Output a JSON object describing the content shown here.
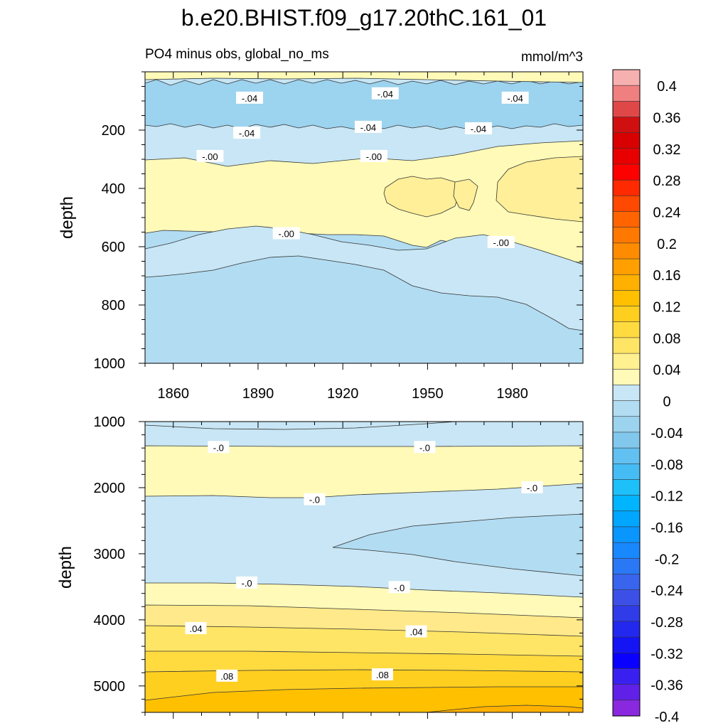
{
  "title": "b.e20.BHIST.f09_g17.20thC.161_01",
  "subtitle_left": "PO4 minus obs, global_no_ms",
  "subtitle_right": "mmol/m^3",
  "chart_data": [
    {
      "type": "contour",
      "panel": "upper",
      "ylabel": "depth",
      "x_range": [
        1850,
        2005
      ],
      "y_range": [
        0,
        1000
      ],
      "y_reversed": true,
      "xticks": [
        "1860",
        "1890",
        "1920",
        "1950",
        "1980"
      ],
      "yticks": [
        "200",
        "400",
        "600",
        "800",
        "1000"
      ],
      "regions": [
        {
          "range": "-0.04 to 0",
          "depth_top": 0,
          "depth_bottom": 20
        },
        {
          "range": "-0.08 to -0.04",
          "depth_top": 20,
          "depth_bottom": 200
        },
        {
          "range": "-0.04 to 0",
          "depth_top": 200,
          "depth_bottom": 300
        },
        {
          "range": "0 to 0.02",
          "depth_top": 300,
          "depth_bottom": 590
        },
        {
          "range": "0.02 to 0.04",
          "depth_top": 360,
          "depth_bottom": 500,
          "years": [
            1932,
            1972
          ]
        },
        {
          "range": "0.02 to 0.04",
          "depth_top": 330,
          "depth_bottom": 510,
          "years": [
            1976,
            2005
          ]
        },
        {
          "range": "-0.02 to 0",
          "depth_top": 590,
          "depth_bottom": 750
        },
        {
          "range": "-0.04 to -0.02",
          "depth_top": 700,
          "depth_bottom": 1000
        }
      ],
      "contour_labels": [
        {
          "text": "-.04",
          "year": 1887,
          "depth": 90
        },
        {
          "text": "-.04",
          "year": 1935,
          "depth": 75
        },
        {
          "text": "-.04",
          "year": 1981,
          "depth": 90
        },
        {
          "text": "-.04",
          "year": 1886,
          "depth": 210
        },
        {
          "text": "-.04",
          "year": 1929,
          "depth": 190
        },
        {
          "text": "-.04",
          "year": 1968,
          "depth": 195
        },
        {
          "text": "-.00",
          "year": 1873,
          "depth": 290
        },
        {
          "text": "-.00",
          "year": 1931,
          "depth": 290
        },
        {
          "text": "-.00",
          "year": 1900,
          "depth": 555
        },
        {
          "text": "-.00",
          "year": 1976,
          "depth": 585
        }
      ]
    },
    {
      "type": "contour",
      "panel": "lower",
      "ylabel": "depth",
      "x_range": [
        1850,
        2005
      ],
      "y_range": [
        1000,
        5400
      ],
      "y_reversed": true,
      "yticks": [
        "1000",
        "2000",
        "3000",
        "4000",
        "5000"
      ],
      "regions": [
        {
          "range": "-0.02 to 0",
          "depth_top": 1000,
          "depth_bottom": 1400
        },
        {
          "range": "0 to 0.02",
          "depth_top": 1400,
          "depth_bottom": 2150
        },
        {
          "range": "-0.02 to 0",
          "depth_top": 2150,
          "depth_bottom": 3450
        },
        {
          "range": "-0.04 to -0.02",
          "depth_top": 2400,
          "depth_bottom": 3300,
          "years": [
            1916,
            2005
          ]
        },
        {
          "range": "0 to 0.02",
          "depth_top": 3450,
          "depth_bottom": 3800
        },
        {
          "range": "0.02 to 0.04",
          "depth_top": 3800,
          "depth_bottom": 4100
        },
        {
          "range": "0.04 to 0.06",
          "depth_top": 4100,
          "depth_bottom": 4700
        },
        {
          "range": "0.06 to 0.08",
          "depth_top": 4700,
          "depth_bottom": 5000
        },
        {
          "range": "0.08 to 0.1",
          "depth_top": 5000,
          "depth_bottom": 5400
        }
      ],
      "contour_labels": [
        {
          "text": "-.0",
          "year": 1876,
          "depth": 1390
        },
        {
          "text": "-.0",
          "year": 1949,
          "depth": 1390
        },
        {
          "text": "-.0",
          "year": 1987,
          "depth": 2000
        },
        {
          "text": "-.0",
          "year": 1910,
          "depth": 2180
        },
        {
          "text": "-.0",
          "year": 1886,
          "depth": 3440
        },
        {
          "text": "-.0",
          "year": 1940,
          "depth": 3510
        },
        {
          "text": ".04",
          "year": 1868,
          "depth": 4130
        },
        {
          "text": ".04",
          "year": 1946,
          "depth": 4180
        },
        {
          "text": ".08",
          "year": 1879,
          "depth": 4850
        },
        {
          "text": ".08",
          "year": 1934,
          "depth": 4830
        }
      ]
    }
  ],
  "colorbar": {
    "labels": [
      "0.4",
      "0.36",
      "0.32",
      "0.28",
      "0.24",
      "0.2",
      "0.16",
      "0.12",
      "0.08",
      "0.04",
      "0",
      "-0.04",
      "-0.08",
      "-0.12",
      "-0.16",
      "-0.2",
      "-0.24",
      "-0.28",
      "-0.32",
      "-0.36",
      "-0.4"
    ],
    "colors": [
      "#f7b0b0",
      "#f08080",
      "#e04848",
      "#d01010",
      "#d80000",
      "#e80000",
      "#ff0000",
      "#ff2a00",
      "#ff4800",
      "#ff6400",
      "#ff7800",
      "#ff8c00",
      "#ffa000",
      "#ffb000",
      "#ffc000",
      "#ffcf20",
      "#ffdb40",
      "#ffe565",
      "#fff090",
      "#fffab8",
      "#c8e6f5",
      "#b2dcf2",
      "#9cd3ef",
      "#82c8ec",
      "#62c1f0",
      "#46bcf5",
      "#1ec0fa",
      "#00b4ff",
      "#00a6ff",
      "#0a96ff",
      "#1888ff",
      "#2a78f5",
      "#3864ee",
      "#3c50e8",
      "#2f3ce8",
      "#2228ee",
      "#1414f5",
      "#0a00ff",
      "#3a20f0",
      "#6020e8",
      "#8a28e0"
    ]
  }
}
